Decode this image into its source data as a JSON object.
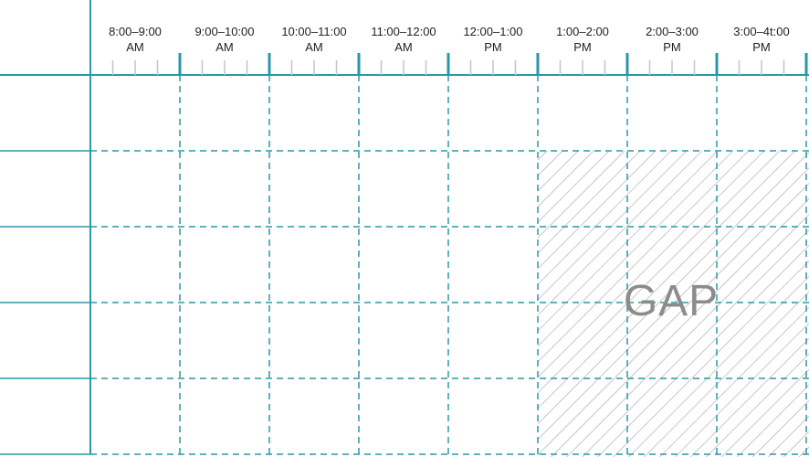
{
  "time_slots": [
    {
      "range": "8:00–9:00",
      "period": "AM"
    },
    {
      "range": "9:00–10:00",
      "period": "AM"
    },
    {
      "range": "10:00–11:00",
      "period": "AM"
    },
    {
      "range": "11:00–12:00",
      "period": "AM"
    },
    {
      "range": "12:00–1:00",
      "period": "PM"
    },
    {
      "range": "1:00–2:00",
      "period": "PM"
    },
    {
      "range": "2:00–3:00",
      "period": "PM"
    },
    {
      "range": "3:00–4t:00",
      "period": "PM"
    }
  ],
  "row_count": 5,
  "gap": {
    "label": "GAP",
    "first_column": 6,
    "last_column": 8,
    "first_row": 2,
    "last_row": 5
  },
  "colors": {
    "grid": "#2a97a8",
    "ticks": "#c4c4c4",
    "hatch": "#b5b5b5",
    "gap_text": "#8c8c8c",
    "header_text": "#222222"
  }
}
